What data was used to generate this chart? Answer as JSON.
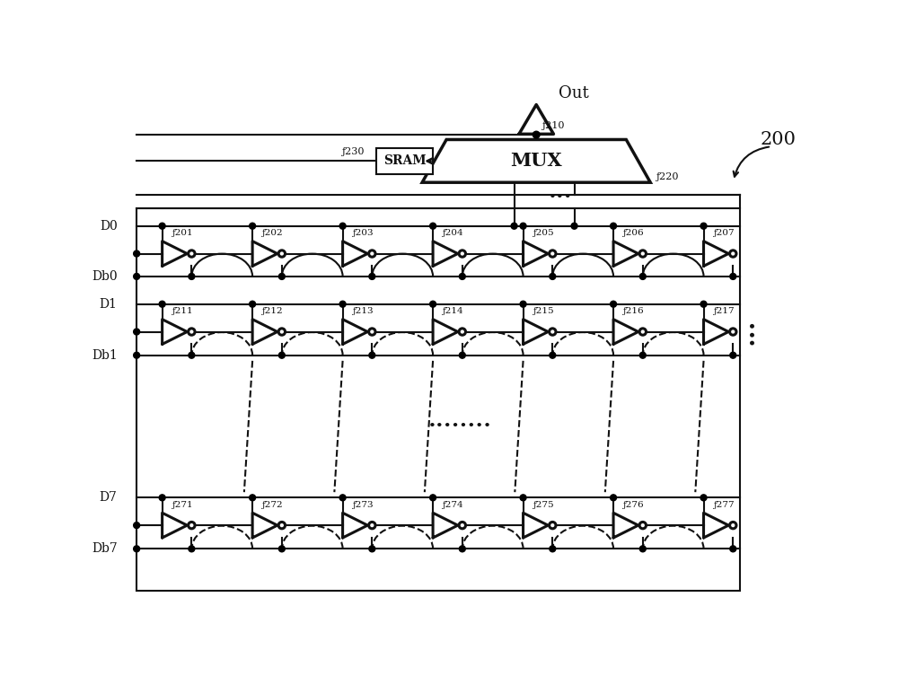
{
  "bg_color": "#ffffff",
  "line_color": "#111111",
  "fig_width": 10.0,
  "fig_height": 7.63,
  "label_200": "200",
  "label_Out": "Out",
  "label_SRAM": "SRAM",
  "label_MUX": "MUX",
  "buf_labels_row0": [
    "201",
    "202",
    "203",
    "204",
    "205",
    "206",
    "207"
  ],
  "buf_labels_row1": [
    "211",
    "212",
    "213",
    "214",
    "215",
    "216",
    "217"
  ],
  "buf_labels_row7": [
    "271",
    "272",
    "273",
    "274",
    "275",
    "276",
    "277"
  ],
  "row0_labels": [
    "D0",
    "Db0"
  ],
  "row1_labels": [
    "D1",
    "Db1"
  ],
  "row7_labels": [
    "D7",
    "Db7"
  ]
}
